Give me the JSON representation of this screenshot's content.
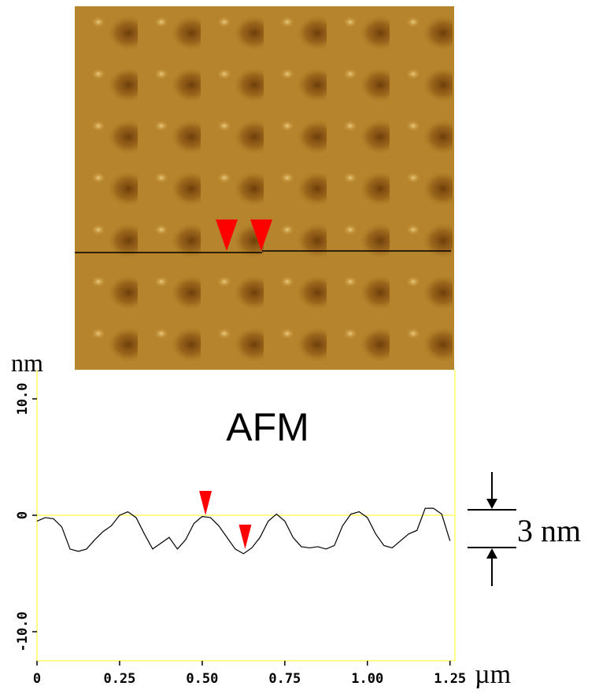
{
  "chart_data": {
    "type": "line",
    "title": "AFM",
    "ylabel": "nm",
    "xlabel": "µm",
    "annotation": "3 nm",
    "x": [
      0,
      0.025,
      0.05,
      0.075,
      0.1,
      0.125,
      0.15,
      0.175,
      0.2,
      0.225,
      0.25,
      0.275,
      0.3,
      0.325,
      0.35,
      0.375,
      0.4,
      0.425,
      0.45,
      0.475,
      0.5,
      0.525,
      0.55,
      0.575,
      0.6,
      0.625,
      0.65,
      0.675,
      0.7,
      0.725,
      0.75,
      0.775,
      0.8,
      0.825,
      0.85,
      0.875,
      0.9,
      0.925,
      0.95,
      0.975,
      1.0,
      1.025,
      1.05,
      1.075,
      1.1,
      1.125,
      1.15,
      1.175,
      1.2,
      1.225,
      1.25
    ],
    "values": [
      -0.5,
      -0.2,
      -0.3,
      -1,
      -2.9,
      -3.1,
      -2.9,
      -2.1,
      -1.4,
      -0.9,
      0,
      0.3,
      -0.2,
      -1.6,
      -2.9,
      -2.4,
      -1.9,
      -2.9,
      -2.1,
      -0.7,
      -0.1,
      -0.2,
      -0.9,
      -1.9,
      -2.9,
      -3.3,
      -2.8,
      -1.9,
      -0.5,
      0.1,
      -0.5,
      -1.9,
      -2.7,
      -2.8,
      -2.7,
      -2.9,
      -2.6,
      -0.9,
      0.1,
      0.3,
      -0.2,
      -1.6,
      -2.6,
      -2.8,
      -2.2,
      -1.6,
      -1.3,
      0.6,
      0.6,
      0.1,
      -2.2
    ],
    "color": "#000000",
    "markers": {
      "x": [
        0.51,
        0.63
      ],
      "values": [
        0,
        -2.9
      ],
      "color": "#ff0000"
    },
    "xlim": [
      0,
      1.265
    ],
    "ylim": [
      -12.5,
      12.5
    ],
    "xticks": [
      0,
      0.25,
      {
        "value": 0.5,
        "label": "0.50"
      },
      0.75,
      {
        "value": 1.0,
        "label": "1.00"
      },
      1.25
    ],
    "yticks": [
      {
        "value": -10,
        "label": "-10.0"
      },
      0,
      {
        "value": 10,
        "label": "10.0"
      }
    ],
    "zero_line": true,
    "axis_color": "#ffff66"
  }
}
